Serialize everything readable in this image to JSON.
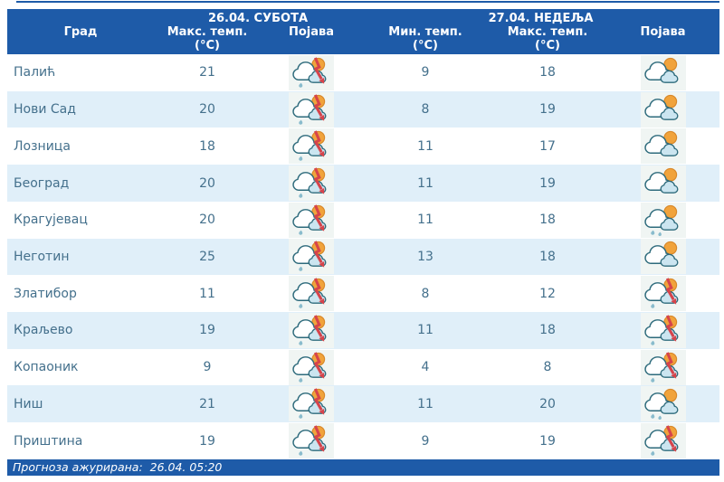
{
  "header": {
    "city_label": "Град",
    "day1_date": "26.04. СУБОТА",
    "day1_max_label": "Макс. темп.",
    "day1_max_unit": "(°C)",
    "day1_phen_label": "Појава",
    "day2_date": "27.04. НЕДЕЉА",
    "day2_min_label": "Мин. темп.",
    "day2_min_unit": "(°C)",
    "day2_max_label": "Макс. темп.",
    "day2_max_unit": "(°C)",
    "day2_phen_label": "Појава"
  },
  "rows": [
    {
      "city": "Палић",
      "d1_max": "21",
      "d1_icon": "thunderstorm-sun-icon",
      "d2_min": "9",
      "d2_max": "18",
      "d2_icon": "partly-cloudy-icon"
    },
    {
      "city": "Нови Сад",
      "d1_max": "20",
      "d1_icon": "thunderstorm-sun-icon",
      "d2_min": "8",
      "d2_max": "19",
      "d2_icon": "partly-cloudy-icon"
    },
    {
      "city": "Лозница",
      "d1_max": "18",
      "d1_icon": "thunderstorm-sun-icon",
      "d2_min": "11",
      "d2_max": "17",
      "d2_icon": "partly-cloudy-icon"
    },
    {
      "city": "Београд",
      "d1_max": "20",
      "d1_icon": "thunderstorm-sun-icon",
      "d2_min": "11",
      "d2_max": "19",
      "d2_icon": "partly-cloudy-icon"
    },
    {
      "city": "Крагујевац",
      "d1_max": "20",
      "d1_icon": "thunderstorm-sun-icon",
      "d2_min": "11",
      "d2_max": "18",
      "d2_icon": "sun-rain-icon"
    },
    {
      "city": "Неготин",
      "d1_max": "25",
      "d1_icon": "thunderstorm-sun-icon",
      "d2_min": "13",
      "d2_max": "18",
      "d2_icon": "partly-cloudy-icon"
    },
    {
      "city": "Златибор",
      "d1_max": "11",
      "d1_icon": "thunderstorm-sun-icon",
      "d2_min": "8",
      "d2_max": "12",
      "d2_icon": "thunderstorm-sun-icon"
    },
    {
      "city": "Краљево",
      "d1_max": "19",
      "d1_icon": "thunderstorm-sun-icon",
      "d2_min": "11",
      "d2_max": "18",
      "d2_icon": "thunderstorm-sun-icon"
    },
    {
      "city": "Копаоник",
      "d1_max": "9",
      "d1_icon": "thunderstorm-sun-icon",
      "d2_min": "4",
      "d2_max": "8",
      "d2_icon": "thunderstorm-sun-icon"
    },
    {
      "city": "Ниш",
      "d1_max": "21",
      "d1_icon": "thunderstorm-sun-icon",
      "d2_min": "11",
      "d2_max": "20",
      "d2_icon": "sun-rain-icon"
    },
    {
      "city": "Приштина",
      "d1_max": "19",
      "d1_icon": "thunderstorm-sun-icon",
      "d2_min": "9",
      "d2_max": "19",
      "d2_icon": "thunderstorm-sun-icon"
    }
  ],
  "footer": {
    "updated_text": "Прогноза ажурирана:  26.04. 05:20"
  },
  "colors": {
    "blue": "#1e5ba8",
    "row_alt": "#e0eff9",
    "text": "#44708c",
    "icon_box": "#f0f5f3",
    "sun_orange": "#f1a33b",
    "sun_edge": "#d8882a",
    "cloud_outline": "#2e6b7c",
    "cloud_front": "#cbe5f0",
    "lightning_red": "#d6444b",
    "drop_teal": "#8abccd"
  }
}
